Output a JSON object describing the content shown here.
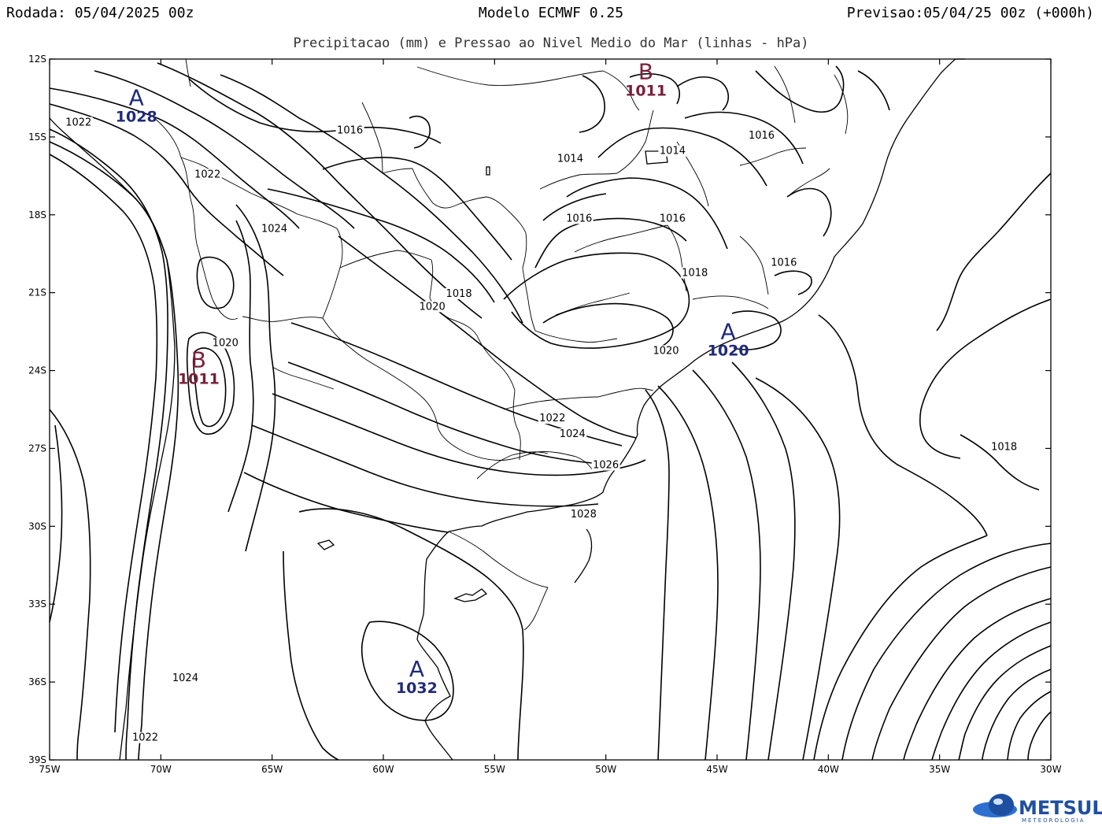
{
  "header": {
    "left": "Rodada: 05/04/2025 00z",
    "center": "Modelo ECMWF 0.25",
    "right": "Previsao:05/04/25 00z (+000h)",
    "subtitle": "Precipitacao (mm) e Pressao ao Nivel Medio do Mar (linhas - hPa)"
  },
  "axes": {
    "lat_labels": [
      "12S",
      "15S",
      "18S",
      "21S",
      "24S",
      "27S",
      "30S",
      "33S",
      "36S",
      "39S"
    ],
    "lon_labels": [
      "75W",
      "70W",
      "65W",
      "60W",
      "55W",
      "50W",
      "45W",
      "40W",
      "35W",
      "30W"
    ]
  },
  "isobar_labels": [
    {
      "text": "1022",
      "lon": -73.7,
      "lat": -14.5
    },
    {
      "text": "1016",
      "lon": -61.5,
      "lat": -14.8
    },
    {
      "text": "1022",
      "lon": -67.9,
      "lat": -16.5
    },
    {
      "text": "1024",
      "lon": -64.9,
      "lat": -18.6
    },
    {
      "text": "1016",
      "lon": -51.2,
      "lat": -18.2
    },
    {
      "text": "1016",
      "lon": -47.0,
      "lat": -18.2
    },
    {
      "text": "1014",
      "lon": -51.6,
      "lat": -15.9
    },
    {
      "text": "1014",
      "lon": -47.0,
      "lat": -15.6
    },
    {
      "text": "1016",
      "lon": -43.0,
      "lat": -15.0
    },
    {
      "text": "1016",
      "lon": -42.0,
      "lat": -19.9
    },
    {
      "text": "1018",
      "lon": -46.0,
      "lat": -20.3
    },
    {
      "text": "1018",
      "lon": -56.6,
      "lat": -21.1
    },
    {
      "text": "1020",
      "lon": -57.8,
      "lat": -21.6
    },
    {
      "text": "1020",
      "lon": -67.1,
      "lat": -23.0
    },
    {
      "text": "1020",
      "lon": -47.3,
      "lat": -23.3
    },
    {
      "text": "1022",
      "lon": -52.4,
      "lat": -25.9
    },
    {
      "text": "1024",
      "lon": -51.5,
      "lat": -26.5
    },
    {
      "text": "1026",
      "lon": -50.0,
      "lat": -27.7
    },
    {
      "text": "1028",
      "lon": -51.0,
      "lat": -29.6
    },
    {
      "text": "1018",
      "lon": -32.1,
      "lat": -27.0
    },
    {
      "text": "1024",
      "lon": -68.9,
      "lat": -35.9
    },
    {
      "text": "1022",
      "lon": -70.7,
      "lat": -38.2
    }
  ],
  "pressure_centers": [
    {
      "letter": "A",
      "value": "1028",
      "kind": "high",
      "lon": -71.1,
      "lat": -13.9
    },
    {
      "letter": "B",
      "value": "1011",
      "kind": "low",
      "lon": -48.2,
      "lat": -12.9
    },
    {
      "letter": "B",
      "value": "1011",
      "kind": "low",
      "lon": -68.3,
      "lat": -24.0
    },
    {
      "letter": "A",
      "value": "1020",
      "kind": "high",
      "lon": -44.5,
      "lat": -22.9
    },
    {
      "letter": "A",
      "value": "1032",
      "kind": "high",
      "lon": -58.5,
      "lat": -35.9
    }
  ],
  "logo": {
    "text": "METSUL",
    "sub": "METEOROLOGIA"
  }
}
